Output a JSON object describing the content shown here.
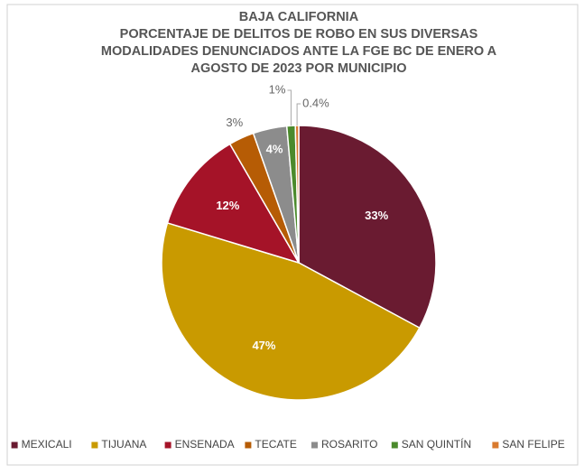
{
  "chart_data": {
    "type": "pie",
    "title": [
      "BAJA CALIFORNIA",
      "PORCENTAJE DE DELITOS DE ROBO EN SUS DIVERSAS",
      "MODALIDADES DENUNCIADOS ANTE LA FGE BC  DE ENERO A",
      "AGOSTO DE 2023 POR MUNICIPIO"
    ],
    "categories": [
      "MEXICALI",
      "TIJUANA",
      "ENSENADA",
      "TECATE",
      "ROSARITO",
      "SAN QUINTÍN",
      "SAN FELIPE"
    ],
    "values": [
      33,
      47,
      12,
      3,
      4,
      1,
      0.4
    ],
    "value_labels": [
      "33%",
      "47%",
      "12%",
      "3%",
      "4%",
      "1%",
      "0.4%"
    ],
    "colors": [
      "#6a1b31",
      "#c99a00",
      "#a51328",
      "#b65c05",
      "#8c8c8c",
      "#4b8a2c",
      "#d97a2e"
    ],
    "legend": "bottom"
  }
}
